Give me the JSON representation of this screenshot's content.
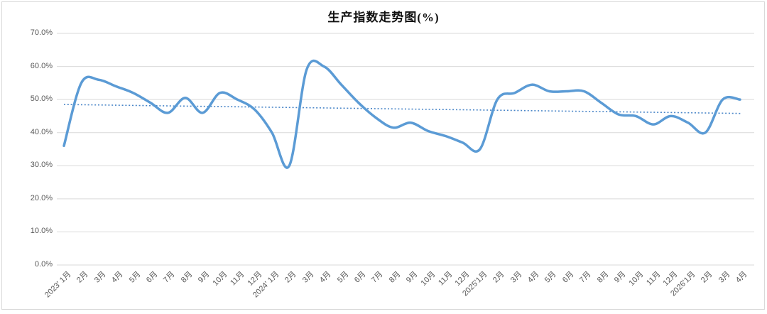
{
  "chart_data": {
    "type": "line",
    "title": "生产指数走势图(%)",
    "line_style": "smooth",
    "grid": true,
    "legend": "none",
    "ylim": [
      0,
      70
    ],
    "y_tick_labels": [
      "70.0%",
      "60.0%",
      "50.0%",
      "40.0%",
      "30.0%",
      "20.0%",
      "10.0%",
      "0.0%"
    ],
    "y_tick_values": [
      70,
      60,
      50,
      40,
      30,
      20,
      10,
      0
    ],
    "x_labels": [
      "2023' 1月",
      "2月",
      "3月",
      "4月",
      "5月",
      "6月",
      "7月",
      "8月",
      "9月",
      "10月",
      "11月",
      "12月",
      "2024' 1月",
      "2月",
      "3月",
      "4月",
      "5月",
      "6月",
      "7月",
      "8月",
      "9月",
      "10月",
      "11月",
      "12月",
      "2025'1月",
      "2月",
      "3月",
      "4月",
      "5月",
      "6月",
      "7月",
      "8月",
      "9月",
      "10月",
      "11月",
      "12月",
      "2026'1月",
      "2月",
      "3月",
      "4月"
    ],
    "series": [
      {
        "name": "生产指数",
        "color": "#5b9bd5",
        "values": [
          36,
          55,
          56,
          54,
          52,
          49,
          46,
          50.5,
          46,
          52,
          50,
          47,
          40,
          30,
          59,
          60,
          54.5,
          49,
          44.5,
          41.5,
          43,
          40.5,
          39,
          37,
          35,
          50,
          52,
          54.5,
          52.5,
          52.5,
          52.5,
          49,
          45.5,
          45,
          42.5,
          45,
          43,
          40,
          50,
          50
        ]
      }
    ],
    "trendline": {
      "type": "linear",
      "style": "dotted",
      "color": "#4a86c8",
      "start_value": 48.5,
      "end_value": 45.8
    },
    "colors": {
      "gridline": "#d9d9d9",
      "axis_text": "#595959",
      "title_text": "#111111",
      "background": "#ffffff"
    }
  }
}
